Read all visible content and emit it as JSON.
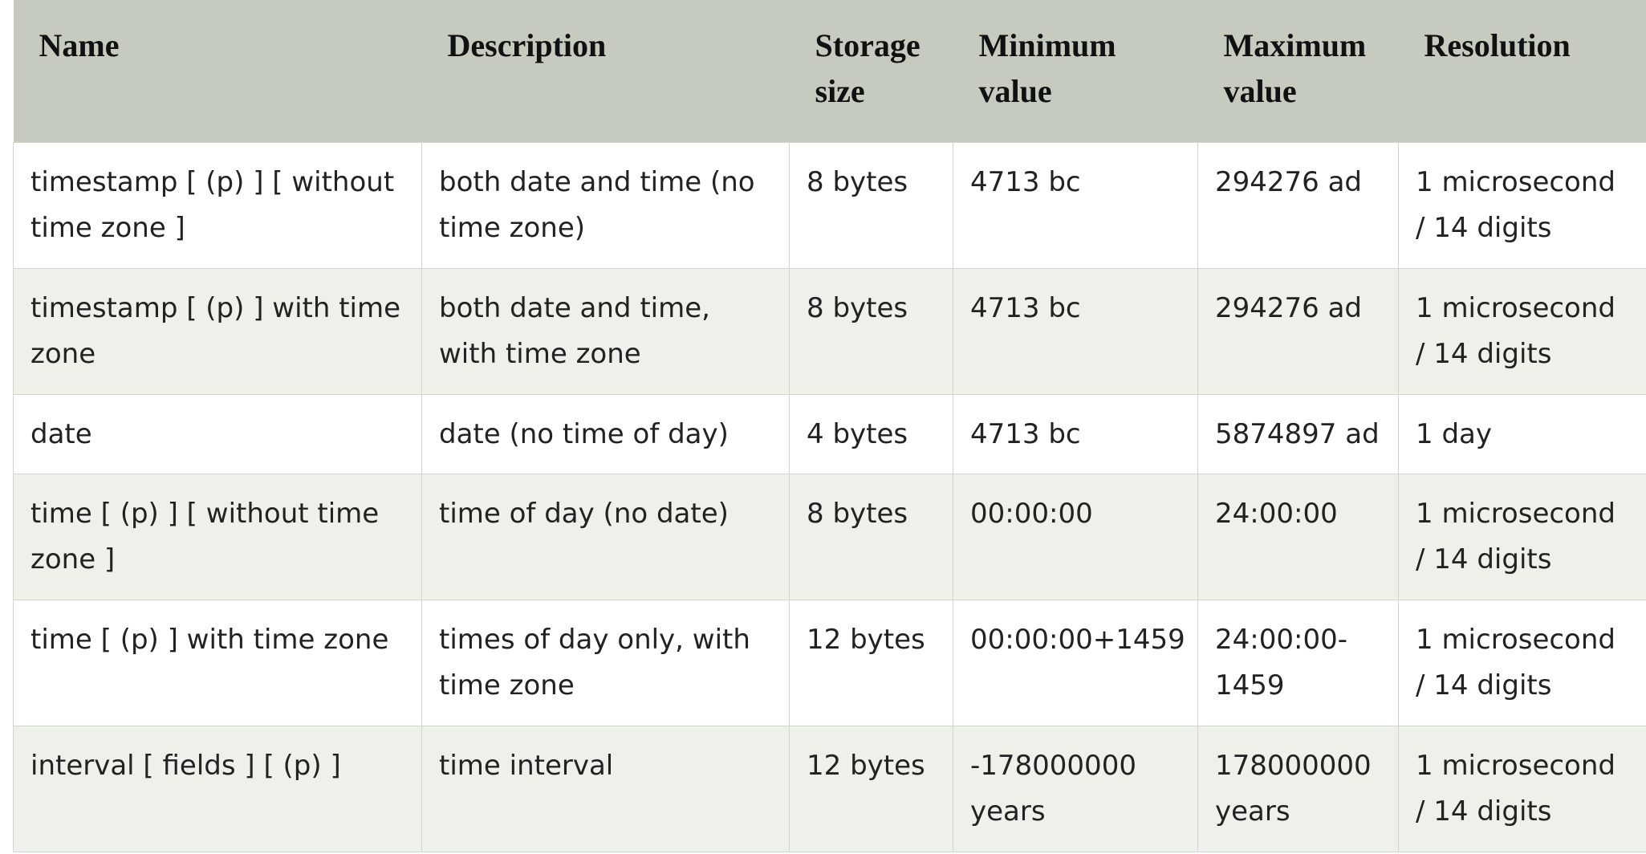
{
  "table": {
    "headers": [
      {
        "line1": "Name",
        "line2": ""
      },
      {
        "line1": "Description",
        "line2": ""
      },
      {
        "line1": "Storage",
        "line2": "size"
      },
      {
        "line1": "Minimum",
        "line2": "value"
      },
      {
        "line1": "Maximum",
        "line2": "value"
      },
      {
        "line1": "Resolution",
        "line2": ""
      }
    ],
    "rows": [
      [
        "timestamp [ (p) ] [ without time zone ]",
        "both date and time (no time zone)",
        "8 bytes",
        "4713 bc",
        "294276 ad",
        "1 microsecond / 14 digits"
      ],
      [
        "timestamp [ (p) ] with time zone",
        "both date and time, with time zone",
        "8 bytes",
        "4713 bc",
        "294276 ad",
        "1 microsecond / 14 digits"
      ],
      [
        "date",
        "date (no time of day)",
        "4 bytes",
        "4713 bc",
        "5874897 ad",
        "1 day"
      ],
      [
        "time [ (p) ] [ without time zone ]",
        "time of day (no date)",
        "8 bytes",
        "00:00:00",
        "24:00:00",
        "1 microsecond / 14 digits"
      ],
      [
        "time [ (p) ] with time zone",
        "times of day only, with time zone",
        "12 bytes",
        "00:00:00+1459",
        "24:00:00-1459",
        "1 microsecond / 14 digits"
      ],
      [
        "interval [ fields ] [ (p) ]",
        "time interval",
        "12 bytes",
        "-178000000 years",
        "178000000 years",
        "1 microsecond / 14 digits"
      ]
    ]
  }
}
